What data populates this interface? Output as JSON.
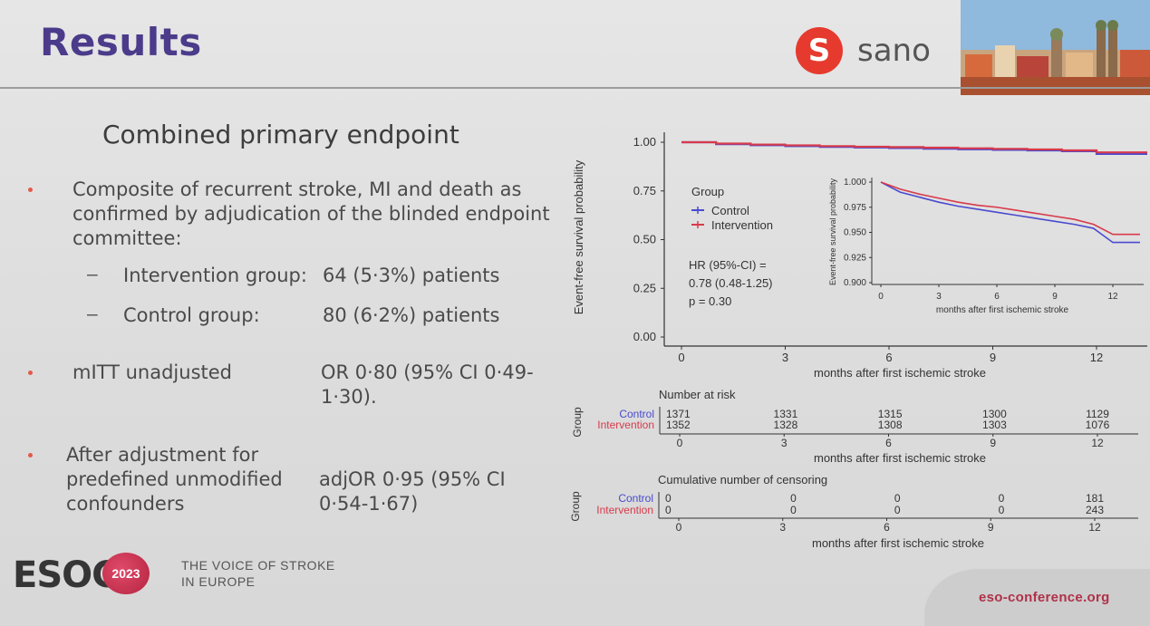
{
  "header": {
    "title": "Results",
    "brand": "sano"
  },
  "subtitle": "Combined primary endpoint",
  "bullets": {
    "b1": {
      "line1": "Composite of recurrent stroke, MI and death as",
      "line2": "confirmed by adjudication of the blinded endpoint",
      "line3": "committee:"
    },
    "sub1": {
      "label": "Intervention group:",
      "value": "64 (5·3%) patients"
    },
    "sub2": {
      "label": "Control group:",
      "value": "80 (6·2%) patients"
    },
    "b2": {
      "label": "mITT unadjusted",
      "value1": "OR 0·80 (95% CI 0·49-",
      "value2": "1·30)."
    },
    "b3": {
      "label1": "After adjustment for",
      "label2": "predefined unmodified",
      "label3": "confounders",
      "value1": "adjOR 0·95 (95% CI",
      "value2": "0·54-1·67)"
    }
  },
  "footer": {
    "esoc": "ESOC",
    "year": "2023",
    "tag1": "THE VOICE OF STROKE",
    "tag2": "IN EUROPE",
    "url": "eso-conference.org"
  },
  "chart_data": {
    "type": "line",
    "ylabel": "Event-free survival probability",
    "xlabel": "months after first ischemic stroke",
    "xlim": [
      0,
      12
    ],
    "ylim": [
      0,
      1
    ],
    "yticks": [
      "0.00",
      "0.25",
      "0.50",
      "0.75",
      "1.00"
    ],
    "xticks": [
      "0",
      "3",
      "6",
      "9",
      "12"
    ],
    "legend_title": "Group",
    "series": [
      {
        "name": "Control",
        "color": "#4a4ad0",
        "x": [
          0,
          1,
          2,
          3,
          4,
          5,
          6,
          7,
          8,
          9,
          10,
          11,
          12
        ],
        "y": [
          1.0,
          0.99,
          0.985,
          0.98,
          0.976,
          0.973,
          0.97,
          0.967,
          0.964,
          0.961,
          0.958,
          0.954,
          0.94
        ]
      },
      {
        "name": "Intervention",
        "color": "#d83a4a",
        "x": [
          0,
          1,
          2,
          3,
          4,
          5,
          6,
          7,
          8,
          9,
          10,
          11,
          12
        ],
        "y": [
          1.0,
          0.993,
          0.988,
          0.984,
          0.98,
          0.977,
          0.975,
          0.972,
          0.969,
          0.966,
          0.963,
          0.958,
          0.948
        ]
      }
    ],
    "annotation": {
      "line1": "HR (95%-CI) =",
      "line2": "0.78 (0.48-1.25)",
      "line3": "p = 0.30"
    },
    "inset": {
      "ylabel": "Event-free survival probability",
      "xlabel": "months after first ischemic stroke",
      "yticks": [
        "0.900",
        "0.925",
        "0.950",
        "0.975",
        "1.000"
      ],
      "xticks": [
        "0",
        "3",
        "6",
        "9",
        "12"
      ],
      "ylim": [
        0.9,
        1.0
      ]
    },
    "risk_table": {
      "title": "Number at risk",
      "ylabel": "Group",
      "rows": [
        {
          "name": "Control",
          "values": [
            "1371",
            "1331",
            "1315",
            "1300",
            "1129"
          ]
        },
        {
          "name": "Intervention",
          "values": [
            "1352",
            "1328",
            "1308",
            "1303",
            "1076"
          ]
        }
      ]
    },
    "censor_table": {
      "title": "Cumulative number of censoring",
      "ylabel": "Group",
      "rows": [
        {
          "name": "Control",
          "values": [
            "0",
            "0",
            "0",
            "0",
            "181"
          ]
        },
        {
          "name": "Intervention",
          "values": [
            "0",
            "0",
            "0",
            "0",
            "243"
          ]
        }
      ]
    }
  }
}
